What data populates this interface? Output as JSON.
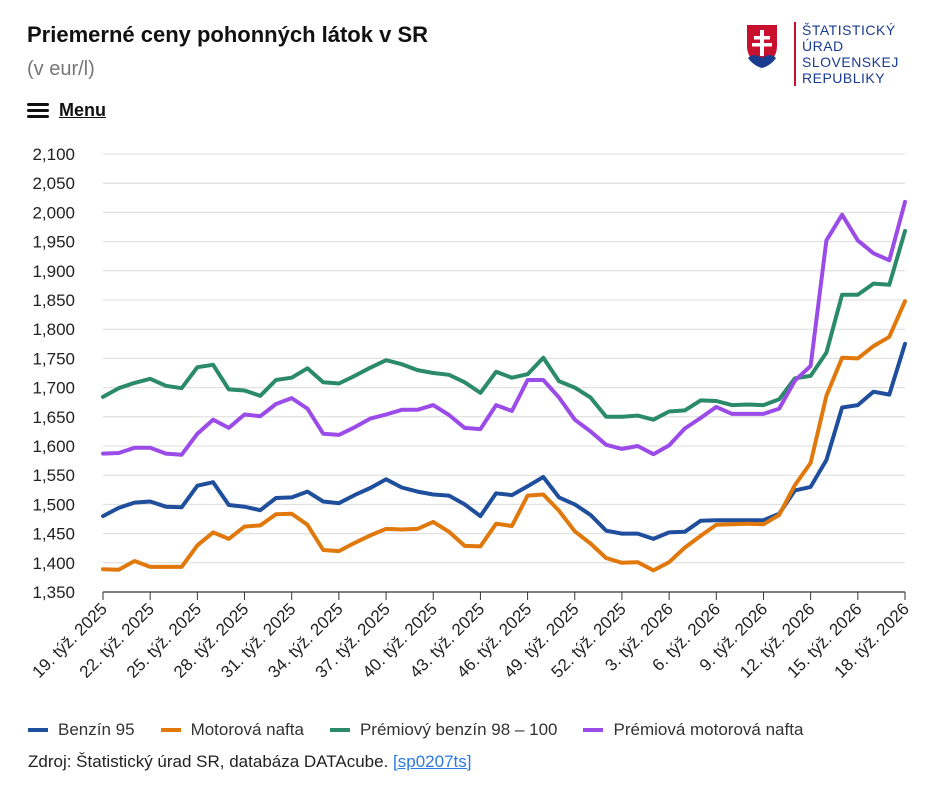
{
  "header": {
    "title": "Priemerné ceny pohonných látok v SR",
    "subtitle": "(v eur/l)",
    "menu_label": "Menu"
  },
  "logo": {
    "lines": [
      "ŠTATISTICKÝ",
      "ÚRAD",
      "SLOVENSKEJ",
      "REPUBLIKY"
    ],
    "colors": {
      "red": "#c8102e",
      "blue": "#1a3c8f"
    }
  },
  "source": {
    "prefix": "Zdroj: Štatistický úrad SR, databáza DATAcube.",
    "link_text": "[sp0207ts]"
  },
  "chart_data": {
    "type": "line",
    "ylim": [
      1.35,
      2.1
    ],
    "yticks": [
      "2,100",
      "2,050",
      "2,000",
      "1,950",
      "1,900",
      "1,850",
      "1,800",
      "1,750",
      "1,700",
      "1,650",
      "1,600",
      "1,550",
      "1,500",
      "1,450",
      "1,400",
      "1,350"
    ],
    "ytick_values": [
      2.1,
      2.05,
      2.0,
      1.95,
      1.9,
      1.85,
      1.8,
      1.75,
      1.7,
      1.65,
      1.6,
      1.55,
      1.5,
      1.45,
      1.4,
      1.35
    ],
    "x": [
      "19. týž. 2025",
      "20. týž. 2025",
      "21. týž. 2025",
      "22. týž. 2025",
      "23. týž. 2025",
      "24. týž. 2025",
      "25. týž. 2025",
      "26. týž. 2025",
      "27. týž. 2025",
      "28. týž. 2025",
      "29. týž. 2025",
      "30. týž. 2025",
      "31. týž. 2025",
      "32. týž. 2025",
      "33. týž. 2025",
      "34. týž. 2025",
      "35. týž. 2025",
      "36. týž. 2025",
      "37. týž. 2025",
      "38. týž. 2025",
      "39. týž. 2025",
      "40. týž. 2025",
      "41. týž. 2025",
      "42. týž. 2025",
      "43. týž. 2025",
      "44. týž. 2025",
      "45. týž. 2025",
      "46. týž. 2025",
      "47. týž. 2025",
      "48. týž. 2025",
      "49. týž. 2025",
      "50. týž. 2025",
      "51. týž. 2025",
      "52. týž. 2025",
      "1. týž. 2026",
      "2. týž. 2026",
      "3. týž. 2026",
      "4. týž. 2026",
      "5. týž. 2026",
      "6. týž. 2026",
      "7. týž. 2026",
      "8. týž. 2026",
      "9. týž. 2026",
      "10. týž. 2026",
      "11. týž. 2026",
      "12. týž. 2026",
      "13. týž. 2026",
      "14. týž. 2026",
      "15. týž. 2026",
      "16. týž. 2026",
      "17. týž. 2026",
      "18. týž. 2026"
    ],
    "xtick_labels": [
      {
        "index": 0,
        "label": "19. týž. 2025"
      },
      {
        "index": 3,
        "label": "22. týž. 2025"
      },
      {
        "index": 6,
        "label": "25. týž. 2025"
      },
      {
        "index": 9,
        "label": "28. týž. 2025"
      },
      {
        "index": 12,
        "label": "31. týž. 2025"
      },
      {
        "index": 15,
        "label": "34. týž. 2025"
      },
      {
        "index": 18,
        "label": "37. týž. 2025"
      },
      {
        "index": 21,
        "label": "40. týž. 2025"
      },
      {
        "index": 24,
        "label": "43. týž. 2025"
      },
      {
        "index": 27,
        "label": "46. týž. 2025"
      },
      {
        "index": 30,
        "label": "49. týž. 2025"
      },
      {
        "index": 33,
        "label": "52. týž. 2025"
      },
      {
        "index": 36,
        "label": "3. týž. 2026"
      },
      {
        "index": 39,
        "label": "6. týž. 2026"
      },
      {
        "index": 42,
        "label": "9. týž. 2026"
      },
      {
        "index": 45,
        "label": "12. týž. 2026"
      },
      {
        "index": 48,
        "label": "15. týž. 2026"
      },
      {
        "index": 51,
        "label": "18. týž. 2026"
      }
    ],
    "grid": true,
    "legend_position": "bottom-left",
    "series": [
      {
        "name": "Benzín 95",
        "color": "#1f4e9c",
        "values": [
          1.48,
          1.494,
          1.503,
          1.505,
          1.496,
          1.495,
          1.532,
          1.538,
          1.499,
          1.496,
          1.49,
          1.511,
          1.512,
          1.522,
          1.505,
          1.502,
          1.516,
          1.528,
          1.543,
          1.529,
          1.522,
          1.517,
          1.515,
          1.5,
          1.48,
          1.519,
          1.516,
          1.531,
          1.547,
          1.512,
          1.5,
          1.482,
          1.455,
          1.45,
          1.45,
          1.441,
          1.452,
          1.453,
          1.472,
          1.473,
          1.473,
          1.473,
          1.473,
          1.484,
          1.524,
          1.53,
          1.576,
          1.666,
          1.67,
          1.693,
          1.688,
          1.775
        ]
      },
      {
        "name": "Motorová nafta",
        "color": "#e0780c",
        "values": [
          1.389,
          1.388,
          1.403,
          1.393,
          1.393,
          1.393,
          1.43,
          1.452,
          1.441,
          1.462,
          1.464,
          1.483,
          1.484,
          1.465,
          1.422,
          1.42,
          1.434,
          1.447,
          1.458,
          1.457,
          1.458,
          1.47,
          1.453,
          1.429,
          1.428,
          1.467,
          1.463,
          1.515,
          1.517,
          1.489,
          1.454,
          1.433,
          1.408,
          1.4,
          1.401,
          1.387,
          1.401,
          1.426,
          1.446,
          1.465,
          1.466,
          1.467,
          1.466,
          1.482,
          1.533,
          1.571,
          1.686,
          1.751,
          1.75,
          1.771,
          1.787,
          1.848
        ]
      },
      {
        "name": "Prémiový benzín 98 – 100",
        "color": "#2a8a6a",
        "values": [
          1.684,
          1.699,
          1.708,
          1.715,
          1.703,
          1.699,
          1.735,
          1.739,
          1.697,
          1.695,
          1.686,
          1.713,
          1.717,
          1.733,
          1.709,
          1.707,
          1.72,
          1.734,
          1.747,
          1.74,
          1.73,
          1.725,
          1.722,
          1.709,
          1.691,
          1.727,
          1.717,
          1.723,
          1.751,
          1.711,
          1.7,
          1.683,
          1.65,
          1.65,
          1.652,
          1.645,
          1.659,
          1.661,
          1.678,
          1.677,
          1.67,
          1.671,
          1.67,
          1.68,
          1.716,
          1.72,
          1.76,
          1.859,
          1.859,
          1.878,
          1.876,
          1.968
        ]
      },
      {
        "name": "Prémiová motorová nafta",
        "color": "#9b4be8",
        "values": [
          1.587,
          1.588,
          1.597,
          1.597,
          1.587,
          1.585,
          1.621,
          1.645,
          1.631,
          1.654,
          1.651,
          1.672,
          1.682,
          1.664,
          1.621,
          1.619,
          1.632,
          1.647,
          1.654,
          1.662,
          1.662,
          1.67,
          1.653,
          1.631,
          1.629,
          1.67,
          1.66,
          1.713,
          1.713,
          1.683,
          1.645,
          1.625,
          1.602,
          1.595,
          1.6,
          1.586,
          1.601,
          1.63,
          1.648,
          1.667,
          1.655,
          1.655,
          1.655,
          1.664,
          1.712,
          1.737,
          1.952,
          1.996,
          1.952,
          1.93,
          1.918,
          2.018
        ]
      }
    ]
  }
}
